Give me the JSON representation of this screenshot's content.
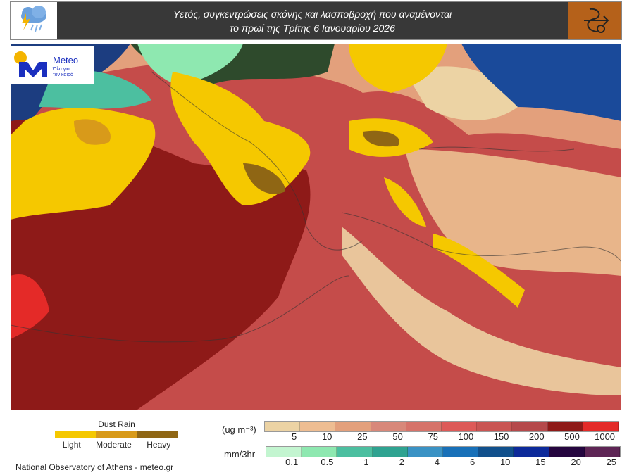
{
  "header": {
    "title_line1": "Υετός, συγκεντρώσεις σκόνης και λασποβροχή που αναμένονται",
    "title_line2": "το πρωί της Τρίτης 6 Ιανουαρίου 2026",
    "left_icon": "rain-cloud-lightning-icon",
    "right_icon": "weather-symbol-icon"
  },
  "logo": {
    "brand": "Meteo",
    "tagline_1": "Όλα για",
    "tagline_2": "τον καιρό"
  },
  "dust_rain_legend": {
    "title": "Dust Rain",
    "levels": [
      {
        "label": "Light",
        "color": "#f5c800"
      },
      {
        "label": "Moderate",
        "color": "#d89a1a"
      },
      {
        "label": "Heavy",
        "color": "#8f6614"
      }
    ]
  },
  "dust_scale": {
    "unit": "(ug m⁻³)",
    "labels": [
      "5",
      "10",
      "25",
      "50",
      "75",
      "100",
      "150",
      "200",
      "500",
      "1000"
    ],
    "colors": [
      "#ecd3a4",
      "#eebd92",
      "#e3a07c",
      "#d8887a",
      "#d6736a",
      "#dd5a58",
      "#c95553",
      "#b5494b",
      "#8e1a18",
      "#e42a28"
    ]
  },
  "precip_scale": {
    "unit": "mm/3hr",
    "labels": [
      "0.1",
      "0.5",
      "1",
      "2",
      "4",
      "6",
      "10",
      "15",
      "20",
      "25"
    ],
    "colors": [
      "#c3f5d0",
      "#8ee8b0",
      "#4cbfa0",
      "#2fa391",
      "#3a92c4",
      "#1870b8",
      "#11508c",
      "#0d2a9a",
      "#25063f",
      "#5e2555"
    ]
  },
  "footer": {
    "credit": "National Observatory of Athens - meteo.gr"
  }
}
